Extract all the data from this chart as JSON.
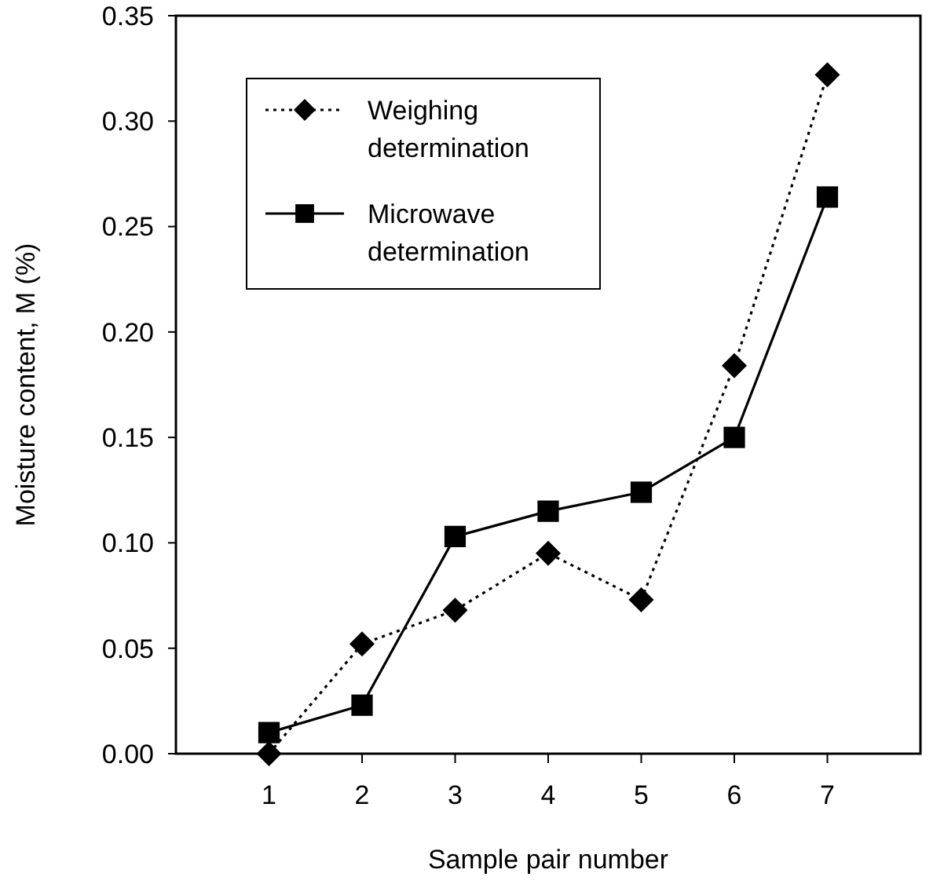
{
  "chart_data": {
    "type": "line",
    "xlabel": "Sample pair number",
    "ylabel": "Moisture content, M (%)",
    "x": [
      1,
      2,
      3,
      4,
      5,
      6,
      7
    ],
    "series": [
      {
        "name": "Weighing determination",
        "color": "#000000",
        "marker": "diamond",
        "line_style": "dotted",
        "values": [
          0.0,
          0.052,
          0.068,
          0.095,
          0.073,
          0.184,
          0.322
        ]
      },
      {
        "name": "Microwave determination",
        "color": "#000000",
        "marker": "square",
        "line_style": "solid",
        "values": [
          0.01,
          0.023,
          0.103,
          0.115,
          0.124,
          0.15,
          0.264
        ]
      }
    ],
    "xlim": [
      0,
      8
    ],
    "xticks": [
      1,
      2,
      3,
      4,
      5,
      6,
      7
    ],
    "ylim": [
      0,
      0.35
    ],
    "yticks": [
      {
        "value": 0,
        "label": "0.00"
      },
      {
        "value": 0.05,
        "label": "0.05"
      },
      {
        "value": 0.1,
        "label": "0.10"
      },
      {
        "value": 0.15,
        "label": "0.15"
      },
      {
        "value": 0.2,
        "label": "0.20"
      },
      {
        "value": 0.25,
        "label": "0.25"
      },
      {
        "value": 0.3,
        "label": "0.30"
      },
      {
        "value": 0.35,
        "label": "0.35"
      }
    ],
    "legend": "top left",
    "grid": false
  }
}
